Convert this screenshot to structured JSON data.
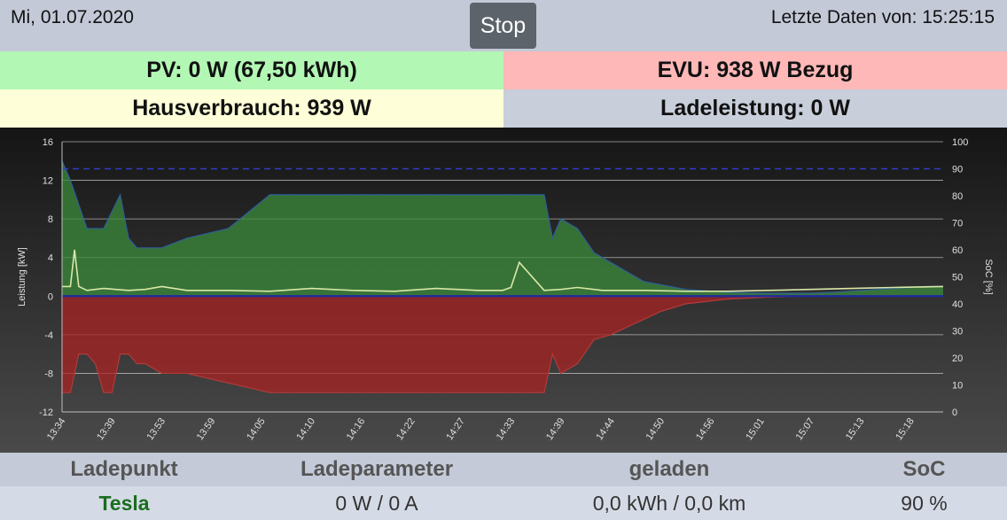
{
  "header": {
    "date": "Mi, 01.07.2020",
    "stop_label": "Stop",
    "last_data": "Letzte Daten von: 15:25:15"
  },
  "tiles": {
    "pv": "PV: 0 W (67,50 kWh)",
    "evu": "EVU: 938 W Bezug",
    "haus": "Hausverbrauch: 939 W",
    "lade": "Ladeleistung: 0 W"
  },
  "chart_data": {
    "type": "area",
    "ylabel": "Leistung [kW]",
    "y2label": "SoC [%]",
    "ylim": [
      -12,
      16
    ],
    "yticks": [
      -12,
      -8,
      -4,
      0,
      4,
      8,
      12,
      16
    ],
    "y2lim": [
      0,
      100
    ],
    "y2ticks": [
      0,
      10,
      20,
      30,
      40,
      50,
      60,
      70,
      80,
      90,
      100
    ],
    "xticks": [
      "13:34",
      "13:39",
      "13:53",
      "13:59",
      "14:05",
      "14:10",
      "14:16",
      "14:22",
      "14:27",
      "14:33",
      "14:39",
      "14:44",
      "14:50",
      "14:56",
      "15:01",
      "15:07",
      "15:13",
      "15:18"
    ],
    "xrange": [
      0,
      106
    ],
    "grid": true,
    "series": [
      {
        "color": "#3b8b3b",
        "x": [
          0,
          1,
          3,
          5,
          7,
          8,
          9,
          10,
          12,
          15,
          20,
          25,
          30,
          31,
          33,
          36,
          40,
          45,
          50,
          53,
          56,
          58,
          59,
          60,
          62,
          64,
          66,
          68,
          70,
          75,
          80,
          85,
          90,
          93,
          96,
          100,
          104,
          106
        ],
        "values": [
          14,
          12,
          7,
          7,
          10.5,
          6,
          5,
          5,
          5,
          6,
          7,
          10.5,
          10.5,
          10.5,
          10.5,
          10.5,
          10.5,
          10.5,
          10.5,
          10.5,
          10.5,
          10.5,
          6,
          8,
          7,
          4.5,
          3.5,
          2.5,
          1.5,
          0.7,
          0.4,
          0.3,
          0.3,
          0.4,
          0.6,
          0.8,
          1,
          1
        ]
      },
      {
        "color": "#a82323",
        "x": [
          0,
          1,
          2,
          3,
          4,
          5,
          6,
          7,
          8,
          9,
          10,
          12,
          15,
          20,
          25,
          30,
          40,
          50,
          53,
          56,
          58,
          59,
          60,
          62,
          64,
          66,
          68,
          70,
          72,
          75,
          80,
          85,
          90,
          95,
          100,
          106
        ],
        "values": [
          -10,
          -10,
          -6,
          -6,
          -7,
          -10,
          -10,
          -6,
          -6,
          -7,
          -7,
          -8,
          -8,
          -9,
          -10,
          -10,
          -10,
          -10,
          -10,
          -10,
          -10,
          -6,
          -8,
          -7,
          -4.5,
          -4,
          -3.2,
          -2.4,
          -1.6,
          -0.8,
          -0.3,
          -0.1,
          0,
          0,
          0,
          0
        ]
      },
      {
        "color": "#d9e8a8",
        "x": [
          0,
          1,
          1.5,
          2,
          3,
          5,
          8,
          10,
          12,
          15,
          20,
          25,
          30,
          35,
          40,
          45,
          50,
          53,
          54,
          55,
          58,
          60,
          62,
          65,
          70,
          75,
          80,
          85,
          90,
          95,
          100,
          106
        ],
        "values": [
          1,
          1,
          4.8,
          1,
          0.6,
          0.8,
          0.6,
          0.7,
          1,
          0.6,
          0.6,
          0.5,
          0.8,
          0.6,
          0.5,
          0.8,
          0.6,
          0.6,
          0.9,
          3.5,
          0.6,
          0.7,
          0.9,
          0.6,
          0.6,
          0.5,
          0.5,
          0.6,
          0.7,
          0.8,
          0.9,
          1
        ]
      }
    ],
    "soc_reference": 90
  },
  "table": {
    "headers": [
      "Ladepunkt",
      "Ladeparameter",
      "geladen",
      "SoC"
    ],
    "row": {
      "name": "Tesla",
      "parameter": "0 W / 0 A",
      "loaded": "0,0 kWh / 0,0 km",
      "soc": "90 %"
    }
  }
}
